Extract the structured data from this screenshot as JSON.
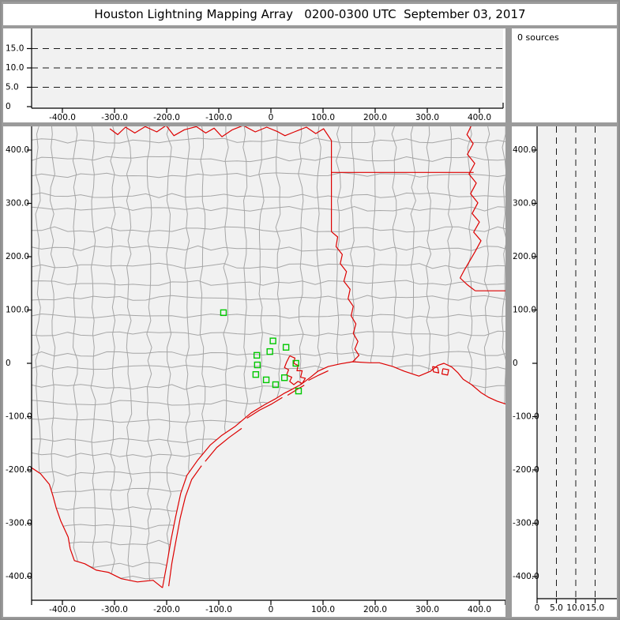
{
  "window_title": "Houston Lightning Mapping Array   0200-0300 UTC  September 03, 2017",
  "sources_panel": {
    "text": "0 sources"
  },
  "colors": {
    "frame": "#9b9b9b",
    "panel_bg": "#ffffff",
    "plot_bg": "#f1f1f1",
    "axis": "#000000",
    "dashed_grid": "#1a1a1a",
    "county_line": "#a6a6a6",
    "state_line": "#dd0000",
    "station_marker": "#00c800"
  },
  "chart_data": [
    {
      "name": "altitude-vs-east-west",
      "type": "scatter",
      "points": [],
      "source_count": 0,
      "x_axis": {
        "tick_values": [
          -400,
          -300,
          -200,
          -100,
          0,
          100,
          200,
          300,
          400
        ],
        "tick_labels": [
          "-400.0",
          "-300.0",
          "-200.0",
          "-100.0",
          "0",
          "100.0",
          "200.0",
          "300.0",
          "400.0"
        ],
        "range_km": [
          -459,
          445
        ]
      },
      "y_axis": {
        "tick_values": [
          0,
          5,
          10,
          15
        ],
        "tick_labels": [
          "0",
          "5.0",
          "10.0",
          "15.0"
        ],
        "range_km": [
          0,
          20.6
        ]
      },
      "dashed_lines_alt_km": [
        5,
        10,
        15
      ]
    },
    {
      "name": "plan-view-map",
      "type": "scatter",
      "points": [],
      "source_count": 0,
      "x_axis": {
        "tick_values": [
          -400,
          -300,
          -200,
          -100,
          0,
          100,
          200,
          300,
          400
        ],
        "tick_labels": [
          "-400.0",
          "-300.0",
          "-200.0",
          "-100.0",
          "0",
          "100.0",
          "200.0",
          "300.0",
          "400.0"
        ],
        "range_km": [
          -459,
          450
        ]
      },
      "y_axis": {
        "tick_values": [
          400,
          300,
          200,
          100,
          0,
          -100,
          -200,
          -300,
          -400
        ],
        "tick_labels": [
          "400.0",
          "300.0",
          "200.0",
          "100.0",
          "0",
          "-100.0",
          "-200.0",
          "-300.0",
          "-400.0"
        ],
        "range_km": [
          -444,
          444
        ]
      },
      "stations_km": [
        [
          -91,
          95
        ],
        [
          4,
          42
        ],
        [
          29,
          30
        ],
        [
          -2,
          22
        ],
        [
          -27,
          15
        ],
        [
          -26,
          -3
        ],
        [
          48,
          0
        ],
        [
          -29,
          -21
        ],
        [
          -9,
          -31
        ],
        [
          26,
          -27
        ],
        [
          9,
          -40
        ],
        [
          53,
          -52
        ]
      ],
      "geography": {
        "coastline": [
          [
            -208,
            -421
          ],
          [
            -199,
            -373
          ],
          [
            -192,
            -333
          ],
          [
            -183,
            -289
          ],
          [
            -173,
            -244
          ],
          [
            -161,
            -210
          ],
          [
            -140,
            -181
          ],
          [
            -116,
            -153
          ],
          [
            -94,
            -135
          ],
          [
            -68,
            -118
          ],
          [
            -38,
            -93
          ],
          [
            -11,
            -77
          ],
          [
            8,
            -67
          ],
          [
            26,
            -56
          ],
          [
            38,
            -50
          ],
          [
            57,
            -40
          ],
          [
            75,
            -27
          ],
          [
            90,
            -15
          ],
          [
            110,
            -6
          ],
          [
            133,
            -1
          ],
          [
            157,
            3
          ],
          [
            189,
            1
          ],
          [
            208,
            1
          ],
          [
            234,
            -6
          ],
          [
            256,
            -15
          ],
          [
            284,
            -24
          ],
          [
            306,
            -15
          ],
          [
            320,
            -4
          ],
          [
            332,
            0
          ],
          [
            347,
            -7
          ],
          [
            359,
            -18
          ],
          [
            369,
            -30
          ],
          [
            385,
            -40
          ],
          [
            403,
            -55
          ],
          [
            418,
            -64
          ],
          [
            434,
            -71
          ],
          [
            455,
            -78
          ]
        ],
        "rio_grande": [
          [
            -208,
            -421
          ],
          [
            -226,
            -407
          ],
          [
            -256,
            -410
          ],
          [
            -287,
            -404
          ],
          [
            -312,
            -392
          ],
          [
            -335,
            -388
          ],
          [
            -357,
            -376
          ],
          [
            -377,
            -370
          ],
          [
            -385,
            -348
          ],
          [
            -389,
            -326
          ],
          [
            -403,
            -296
          ],
          [
            -412,
            -271
          ],
          [
            -418,
            -249
          ],
          [
            -425,
            -227
          ],
          [
            -442,
            -207
          ],
          [
            -462,
            -194
          ]
        ],
        "red_river": [
          [
            -309,
            440
          ],
          [
            -294,
            429
          ],
          [
            -279,
            443
          ],
          [
            -261,
            432
          ],
          [
            -241,
            444
          ],
          [
            -219,
            434
          ],
          [
            -201,
            446
          ],
          [
            -186,
            427
          ],
          [
            -166,
            438
          ],
          [
            -143,
            444
          ],
          [
            -125,
            432
          ],
          [
            -109,
            441
          ],
          [
            -94,
            425
          ],
          [
            -74,
            438
          ],
          [
            -53,
            446
          ],
          [
            -30,
            434
          ],
          [
            -8,
            443
          ],
          [
            12,
            435
          ],
          [
            27,
            427
          ],
          [
            45,
            434
          ],
          [
            68,
            443
          ],
          [
            86,
            431
          ],
          [
            101,
            440
          ],
          [
            116,
            418
          ]
        ],
        "tx_ar_border": [
          [
            116,
            418
          ],
          [
            116,
            247
          ]
        ],
        "ok_ar_border": [
          [
            116,
            358
          ],
          [
            389,
            358
          ]
        ],
        "ar_la_border": [
          [
            392,
            136
          ],
          [
            455,
            136
          ]
        ],
        "sabine_river": [
          [
            116,
            247
          ],
          [
            128,
            237
          ],
          [
            125,
            219
          ],
          [
            137,
            204
          ],
          [
            133,
            187
          ],
          [
            145,
            172
          ],
          [
            140,
            154
          ],
          [
            152,
            139
          ],
          [
            148,
            121
          ],
          [
            158,
            107
          ],
          [
            154,
            89
          ],
          [
            163,
            74
          ],
          [
            158,
            56
          ],
          [
            167,
            41
          ],
          [
            161,
            27
          ],
          [
            169,
            15
          ],
          [
            157,
            3
          ]
        ],
        "mississippi_river": [
          [
            385,
            447
          ],
          [
            376,
            429
          ],
          [
            388,
            412
          ],
          [
            377,
            392
          ],
          [
            391,
            375
          ],
          [
            380,
            355
          ],
          [
            394,
            338
          ],
          [
            383,
            318
          ],
          [
            397,
            301
          ],
          [
            386,
            281
          ],
          [
            400,
            265
          ],
          [
            389,
            246
          ],
          [
            403,
            230
          ],
          [
            392,
            210
          ],
          [
            382,
            193
          ],
          [
            371,
            175
          ],
          [
            363,
            160
          ],
          [
            376,
            148
          ],
          [
            392,
            136
          ]
        ],
        "galveston_bay": [
          [
            36,
            14
          ],
          [
            46,
            10
          ],
          [
            44,
            0
          ],
          [
            52,
            -4
          ],
          [
            50,
            -14
          ],
          [
            60,
            -14
          ],
          [
            57,
            -26
          ],
          [
            66,
            -28
          ],
          [
            60,
            -38
          ],
          [
            52,
            -34
          ],
          [
            44,
            -40
          ],
          [
            36,
            -34
          ],
          [
            40,
            -26
          ],
          [
            30,
            -22
          ],
          [
            34,
            -12
          ],
          [
            26,
            -8
          ],
          [
            30,
            2
          ],
          [
            36,
            14
          ]
        ],
        "lakes": [
          [
            [
              310,
              -6
            ],
            [
              320,
              -8
            ],
            [
              322,
              -18
            ],
            [
              312,
              -16
            ],
            [
              310,
              -6
            ]
          ],
          [
            [
              330,
              -10
            ],
            [
              341,
              -12
            ],
            [
              339,
              -22
            ],
            [
              328,
              -20
            ],
            [
              330,
              -10
            ]
          ]
        ],
        "barrier_islands": [
          [
            [
              -196,
              -418
            ],
            [
              -190,
              -375
            ],
            [
              -182,
              -332
            ],
            [
              -174,
              -290
            ],
            [
              -164,
              -250
            ],
            [
              -152,
              -218
            ],
            [
              -133,
              -192
            ]
          ],
          [
            [
              -126,
              -184
            ],
            [
              -104,
              -158
            ],
            [
              -80,
              -139
            ],
            [
              -56,
              -122
            ]
          ],
          [
            [
              -46,
              -103
            ],
            [
              -22,
              -88
            ],
            [
              2,
              -76
            ],
            [
              22,
              -64
            ]
          ],
          [
            [
              32,
              -60
            ],
            [
              52,
              -48
            ],
            [
              64,
              -41
            ]
          ],
          [
            [
              72,
              -32
            ],
            [
              92,
              -22
            ],
            [
              110,
              -14
            ]
          ]
        ]
      },
      "county_grid": {
        "cell_km": [
          36,
          33
        ],
        "jitter_km": 5,
        "seed": 20170903
      }
    },
    {
      "name": "altitude-vs-north-south",
      "type": "scatter",
      "points": [],
      "source_count": 0,
      "x_axis": {
        "tick_values": [
          0,
          5,
          10,
          15
        ],
        "tick_labels": [
          "0",
          "5.0",
          "10.0",
          "15.0"
        ],
        "range_km": [
          0,
          20.6
        ]
      },
      "y_axis": {
        "tick_values": [
          400,
          300,
          200,
          100,
          0,
          -100,
          -200,
          -300,
          -400
        ],
        "tick_labels": [
          "400.0",
          "300.0",
          "200.0",
          "100.0",
          "0",
          "-100.0",
          "-200.0",
          "-300.0",
          "-400.0"
        ],
        "range_km": [
          -444,
          444
        ]
      },
      "dashed_lines_alt_km": [
        5,
        10,
        15
      ]
    }
  ]
}
